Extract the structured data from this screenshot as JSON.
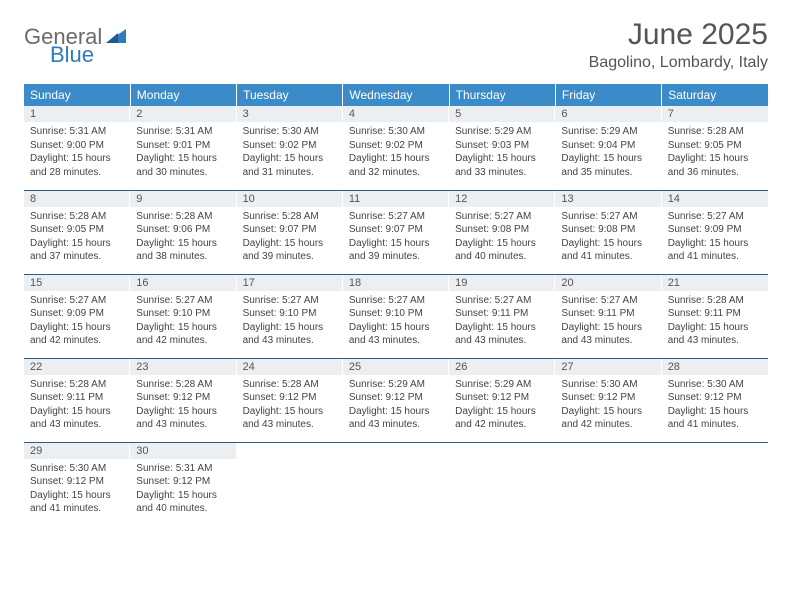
{
  "logo": {
    "general": "General",
    "blue": "Blue"
  },
  "title": "June 2025",
  "location": "Bagolino, Lombardy, Italy",
  "colors": {
    "header_bg": "#3b8bc8",
    "header_text": "#ffffff",
    "daynum_bg": "#eceff1",
    "border": "#2f5b8a",
    "logo_gray": "#6b6b6b",
    "logo_blue": "#2f7bbf",
    "body_text": "#444"
  },
  "typography": {
    "title_fontsize": 30,
    "location_fontsize": 16,
    "dayheader_fontsize": 12,
    "daynum_fontsize": 11,
    "body_fontsize": 10
  },
  "day_headers": [
    "Sunday",
    "Monday",
    "Tuesday",
    "Wednesday",
    "Thursday",
    "Friday",
    "Saturday"
  ],
  "weeks": [
    [
      {
        "n": "1",
        "sunrise": "5:31 AM",
        "sunset": "9:00 PM",
        "dl1": "Daylight: 15 hours",
        "dl2": "and 28 minutes."
      },
      {
        "n": "2",
        "sunrise": "5:31 AM",
        "sunset": "9:01 PM",
        "dl1": "Daylight: 15 hours",
        "dl2": "and 30 minutes."
      },
      {
        "n": "3",
        "sunrise": "5:30 AM",
        "sunset": "9:02 PM",
        "dl1": "Daylight: 15 hours",
        "dl2": "and 31 minutes."
      },
      {
        "n": "4",
        "sunrise": "5:30 AM",
        "sunset": "9:02 PM",
        "dl1": "Daylight: 15 hours",
        "dl2": "and 32 minutes."
      },
      {
        "n": "5",
        "sunrise": "5:29 AM",
        "sunset": "9:03 PM",
        "dl1": "Daylight: 15 hours",
        "dl2": "and 33 minutes."
      },
      {
        "n": "6",
        "sunrise": "5:29 AM",
        "sunset": "9:04 PM",
        "dl1": "Daylight: 15 hours",
        "dl2": "and 35 minutes."
      },
      {
        "n": "7",
        "sunrise": "5:28 AM",
        "sunset": "9:05 PM",
        "dl1": "Daylight: 15 hours",
        "dl2": "and 36 minutes."
      }
    ],
    [
      {
        "n": "8",
        "sunrise": "5:28 AM",
        "sunset": "9:05 PM",
        "dl1": "Daylight: 15 hours",
        "dl2": "and 37 minutes."
      },
      {
        "n": "9",
        "sunrise": "5:28 AM",
        "sunset": "9:06 PM",
        "dl1": "Daylight: 15 hours",
        "dl2": "and 38 minutes."
      },
      {
        "n": "10",
        "sunrise": "5:28 AM",
        "sunset": "9:07 PM",
        "dl1": "Daylight: 15 hours",
        "dl2": "and 39 minutes."
      },
      {
        "n": "11",
        "sunrise": "5:27 AM",
        "sunset": "9:07 PM",
        "dl1": "Daylight: 15 hours",
        "dl2": "and 39 minutes."
      },
      {
        "n": "12",
        "sunrise": "5:27 AM",
        "sunset": "9:08 PM",
        "dl1": "Daylight: 15 hours",
        "dl2": "and 40 minutes."
      },
      {
        "n": "13",
        "sunrise": "5:27 AM",
        "sunset": "9:08 PM",
        "dl1": "Daylight: 15 hours",
        "dl2": "and 41 minutes."
      },
      {
        "n": "14",
        "sunrise": "5:27 AM",
        "sunset": "9:09 PM",
        "dl1": "Daylight: 15 hours",
        "dl2": "and 41 minutes."
      }
    ],
    [
      {
        "n": "15",
        "sunrise": "5:27 AM",
        "sunset": "9:09 PM",
        "dl1": "Daylight: 15 hours",
        "dl2": "and 42 minutes."
      },
      {
        "n": "16",
        "sunrise": "5:27 AM",
        "sunset": "9:10 PM",
        "dl1": "Daylight: 15 hours",
        "dl2": "and 42 minutes."
      },
      {
        "n": "17",
        "sunrise": "5:27 AM",
        "sunset": "9:10 PM",
        "dl1": "Daylight: 15 hours",
        "dl2": "and 43 minutes."
      },
      {
        "n": "18",
        "sunrise": "5:27 AM",
        "sunset": "9:10 PM",
        "dl1": "Daylight: 15 hours",
        "dl2": "and 43 minutes."
      },
      {
        "n": "19",
        "sunrise": "5:27 AM",
        "sunset": "9:11 PM",
        "dl1": "Daylight: 15 hours",
        "dl2": "and 43 minutes."
      },
      {
        "n": "20",
        "sunrise": "5:27 AM",
        "sunset": "9:11 PM",
        "dl1": "Daylight: 15 hours",
        "dl2": "and 43 minutes."
      },
      {
        "n": "21",
        "sunrise": "5:28 AM",
        "sunset": "9:11 PM",
        "dl1": "Daylight: 15 hours",
        "dl2": "and 43 minutes."
      }
    ],
    [
      {
        "n": "22",
        "sunrise": "5:28 AM",
        "sunset": "9:11 PM",
        "dl1": "Daylight: 15 hours",
        "dl2": "and 43 minutes."
      },
      {
        "n": "23",
        "sunrise": "5:28 AM",
        "sunset": "9:12 PM",
        "dl1": "Daylight: 15 hours",
        "dl2": "and 43 minutes."
      },
      {
        "n": "24",
        "sunrise": "5:28 AM",
        "sunset": "9:12 PM",
        "dl1": "Daylight: 15 hours",
        "dl2": "and 43 minutes."
      },
      {
        "n": "25",
        "sunrise": "5:29 AM",
        "sunset": "9:12 PM",
        "dl1": "Daylight: 15 hours",
        "dl2": "and 43 minutes."
      },
      {
        "n": "26",
        "sunrise": "5:29 AM",
        "sunset": "9:12 PM",
        "dl1": "Daylight: 15 hours",
        "dl2": "and 42 minutes."
      },
      {
        "n": "27",
        "sunrise": "5:30 AM",
        "sunset": "9:12 PM",
        "dl1": "Daylight: 15 hours",
        "dl2": "and 42 minutes."
      },
      {
        "n": "28",
        "sunrise": "5:30 AM",
        "sunset": "9:12 PM",
        "dl1": "Daylight: 15 hours",
        "dl2": "and 41 minutes."
      }
    ],
    [
      {
        "n": "29",
        "sunrise": "5:30 AM",
        "sunset": "9:12 PM",
        "dl1": "Daylight: 15 hours",
        "dl2": "and 41 minutes."
      },
      {
        "n": "30",
        "sunrise": "5:31 AM",
        "sunset": "9:12 PM",
        "dl1": "Daylight: 15 hours",
        "dl2": "and 40 minutes."
      },
      null,
      null,
      null,
      null,
      null
    ]
  ]
}
